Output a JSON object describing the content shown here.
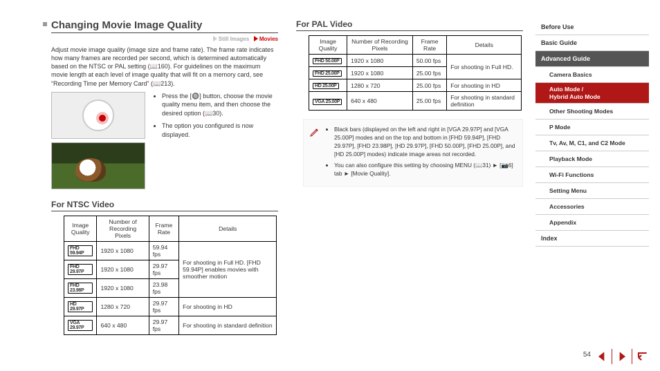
{
  "heading": "Changing Movie Image Quality",
  "mode": {
    "still": "Still Images",
    "movies": "Movies"
  },
  "intro": "Adjust movie image quality (image size and frame rate). The frame rate indicates how many frames are recorded per second, which is determined automatically based on the NTSC or PAL setting (📖160). For guidelines on the maximum movie length at each level of image quality that will fit on a memory card, see “Recording Time per Memory Card” (📖213).",
  "steps": {
    "b1": "Press the [🔘] button, choose the movie quality menu item, and then choose the desired option (📖30).",
    "b2": "The option you configured is now displayed."
  },
  "ntsc": {
    "title": "For NTSC Video",
    "headers": {
      "c1": "Image Quality",
      "c2": "Number of Recording Pixels",
      "c3": "Frame Rate",
      "c4": "Details"
    },
    "rows": [
      {
        "iq": "FHD 59.94P",
        "px": "1920 x 1080",
        "fr": "59.94 fps"
      },
      {
        "iq": "FHD 29.97P",
        "px": "1920 x 1080",
        "fr": "29.97 fps"
      },
      {
        "iq": "FHD 23.98P",
        "px": "1920 x 1080",
        "fr": "23.98 fps"
      },
      {
        "iq": "HD 29.97P",
        "px": "1280 x 720",
        "fr": "29.97 fps",
        "det": "For shooting in HD"
      },
      {
        "iq": "VGA 29.97P",
        "px": "640 x 480",
        "fr": "29.97 fps",
        "det": "For shooting in standard definition"
      }
    ],
    "fhd_detail": "For shooting in Full HD. [FHD 59.94P] enables movies with smoother motion"
  },
  "pal": {
    "title": "For PAL Video",
    "headers": {
      "c1": "Image Quality",
      "c2": "Number of Recording Pixels",
      "c3": "Frame Rate",
      "c4": "Details"
    },
    "rows": [
      {
        "iq": "FHD 50.00P",
        "px": "1920 x 1080",
        "fr": "50.00 fps"
      },
      {
        "iq": "FHD 25.00P",
        "px": "1920 x 1080",
        "fr": "25.00 fps"
      },
      {
        "iq": "HD 25.00P",
        "px": "1280 x 720",
        "fr": "25.00 fps",
        "det": "For shooting in HD"
      },
      {
        "iq": "VGA 25.00P",
        "px": "640 x 480",
        "fr": "25.00 fps",
        "det": "For shooting in standard definition"
      }
    ],
    "fhd_detail": "For shooting in Full HD."
  },
  "note": {
    "l1": "Black bars (displayed on the left and right in [VGA 29.97P] and [VGA 25.00P] modes and on the top and bottom in [FHD 59.94P], [FHD 29.97P], [FHD 23.98P], [HD 29.97P], [FHD 50.00P], [FHD 25.00P], and [HD 25.00P] modes) indicate image areas not recorded.",
    "l2": "You can also configure this setting by choosing MENU (📖31) ► [📷6] tab ► [Movie Quality]."
  },
  "nav": {
    "items": [
      {
        "label": "Before Use",
        "sub": false
      },
      {
        "label": "Basic Guide",
        "sub": false
      },
      {
        "label": "Advanced Guide",
        "sub": false,
        "activeDark": true
      },
      {
        "label": "Camera Basics",
        "sub": true
      },
      {
        "label": "Auto Mode /\nHybrid Auto Mode",
        "sub": true,
        "activeRed": true
      },
      {
        "label": "Other Shooting Modes",
        "sub": true
      },
      {
        "label": "P Mode",
        "sub": true
      },
      {
        "label": "Tv, Av, M, C1, and C2 Mode",
        "sub": true
      },
      {
        "label": "Playback Mode",
        "sub": true
      },
      {
        "label": "Wi-Fi Functions",
        "sub": true
      },
      {
        "label": "Setting Menu",
        "sub": true
      },
      {
        "label": "Accessories",
        "sub": true
      },
      {
        "label": "Appendix",
        "sub": true
      },
      {
        "label": "Index",
        "sub": false
      }
    ]
  },
  "pageNumber": "54"
}
